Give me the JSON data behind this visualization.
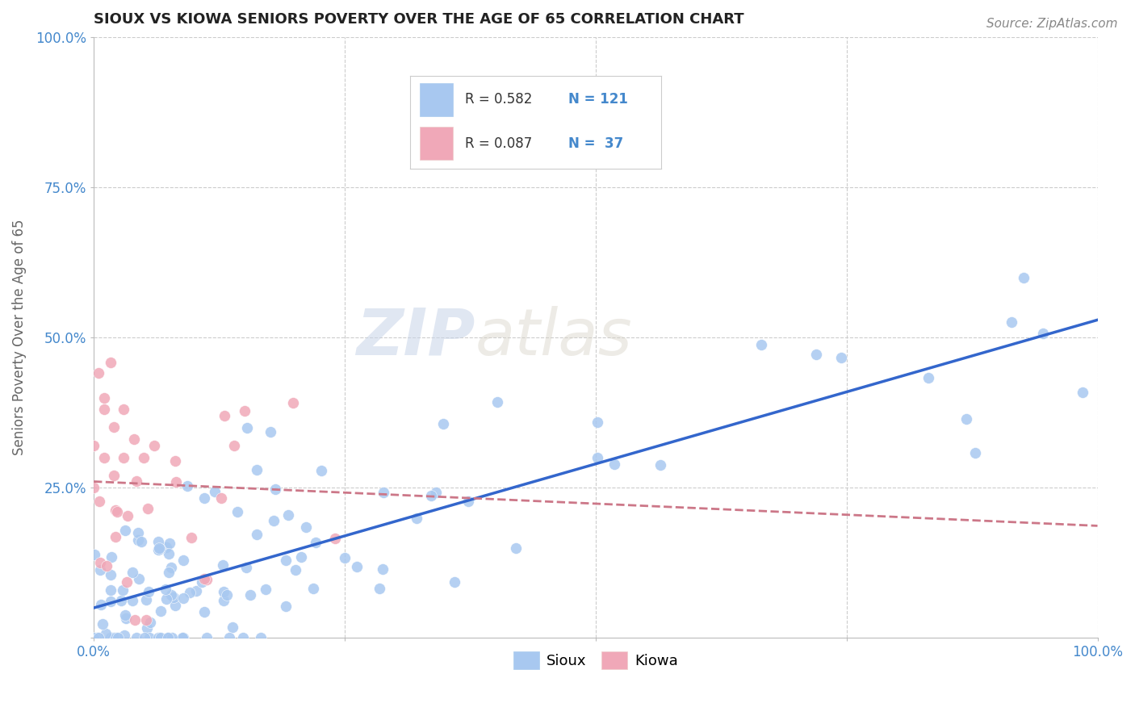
{
  "title": "SIOUX VS KIOWA SENIORS POVERTY OVER THE AGE OF 65 CORRELATION CHART",
  "source_text": "Source: ZipAtlas.com",
  "ylabel": "Seniors Poverty Over the Age of 65",
  "legend_r": [
    0.582,
    0.087
  ],
  "legend_n": [
    121,
    37
  ],
  "sioux_color": "#a8c8f0",
  "kiowa_color": "#f0a8b8",
  "sioux_line_color": "#3366cc",
  "kiowa_line_color": "#cc7788",
  "background_color": "#ffffff",
  "grid_color": "#cccccc",
  "watermark_color": "#d0d8e8",
  "title_color": "#222222",
  "tick_color": "#4488cc",
  "ylabel_color": "#666666",
  "source_color": "#888888"
}
